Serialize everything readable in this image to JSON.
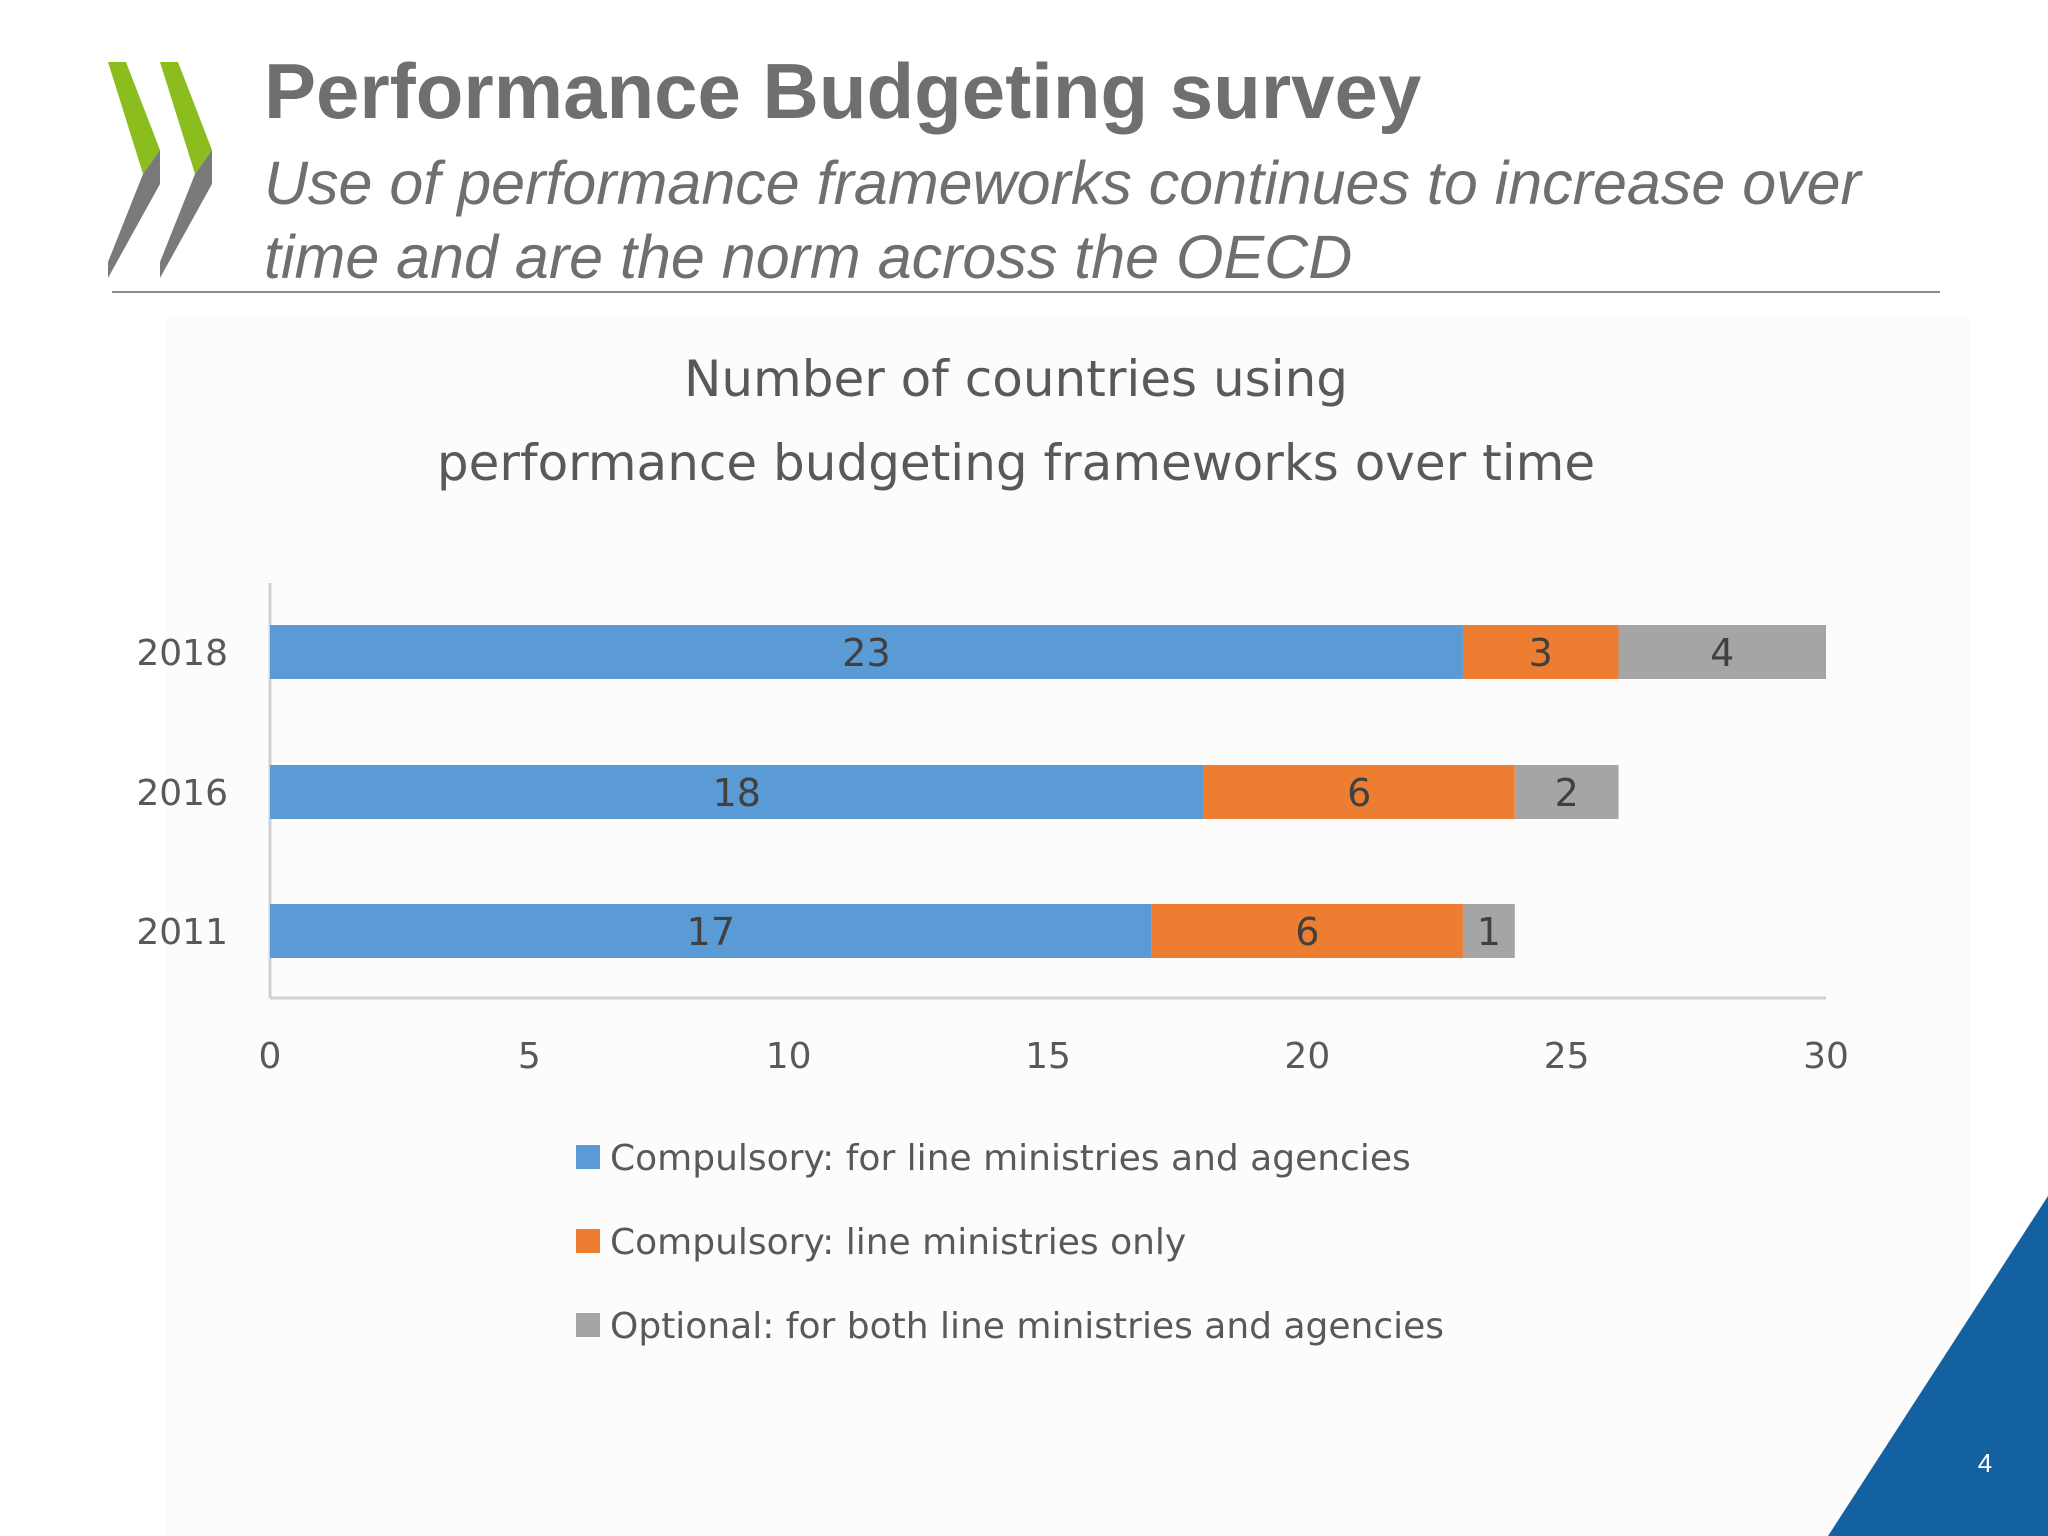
{
  "header": {
    "title": "Performance Budgeting survey",
    "subtitle": "Use of performance frameworks continues to increase over time and are the norm across the OECD"
  },
  "page": {
    "number": "4"
  },
  "colors": {
    "text_gray": "#6f6f70",
    "logo_green": "#8cbd1f",
    "logo_gray": "#7a7a7a",
    "corner_blue": "#1361a0"
  },
  "chart_data": {
    "type": "bar",
    "orientation": "horizontal",
    "stacked": true,
    "title_lines": [
      "Number of countries using",
      "performance  budgeting frameworks over time"
    ],
    "categories": [
      "2018",
      "2016",
      "2011"
    ],
    "series": [
      {
        "name": "Compulsory: for line ministries and agencies",
        "values": [
          23,
          18,
          17
        ],
        "color": "#5b9bd5"
      },
      {
        "name": "Compulsory: line ministries only",
        "values": [
          3,
          6,
          6
        ],
        "color": "#ed7d31"
      },
      {
        "name": "Optional: for both line ministries and agencies",
        "values": [
          4,
          2,
          1
        ],
        "color": "#a5a5a5"
      }
    ],
    "xlim": [
      0,
      30
    ],
    "xticks": [
      0,
      5,
      10,
      15,
      20,
      25,
      30
    ],
    "data_labels": true,
    "grid": false,
    "legend_position": "bottom"
  }
}
